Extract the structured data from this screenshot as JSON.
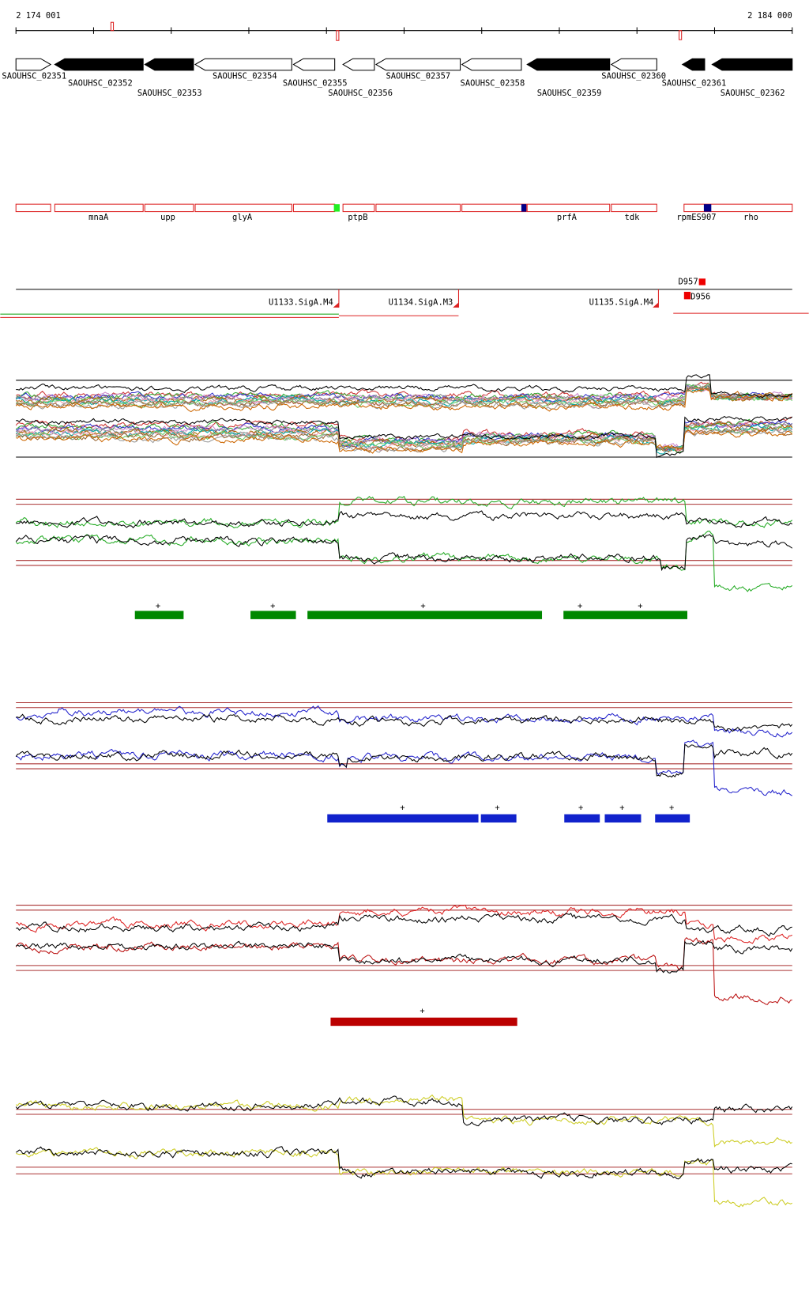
{
  "ruler": {
    "start": "2 174 001",
    "end": "2 184 000"
  },
  "genes": [
    "SAOUHSC_02351",
    "SAOUHSC_02352",
    "SAOUHSC_02353",
    "SAOUHSC_02354",
    "SAOUHSC_02355",
    "SAOUHSC_02356",
    "SAOUHSC_02357",
    "SAOUHSC_02358",
    "SAOUHSC_02359",
    "SAOUHSC_02360",
    "SAOUHSC_02361",
    "SAOUHSC_02362"
  ],
  "gene_names": [
    "mnaA",
    "upp",
    "glyA",
    "ptpB",
    "prfA",
    "tdk",
    "rpmE",
    "S907",
    "rho"
  ],
  "promoters": [
    "U1133.SigA.M4",
    "U1134.SigA.M3",
    "U1135.SigA.M4"
  ],
  "features": [
    "D957",
    "D956"
  ],
  "green_marks": [
    "+",
    "+",
    "+",
    "+",
    "+"
  ],
  "blue_marks": [
    "+",
    "+",
    "+",
    "+",
    "+"
  ],
  "red_marks": [
    "+"
  ]
}
